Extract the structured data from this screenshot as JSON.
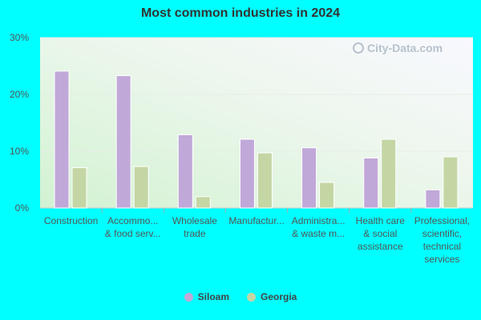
{
  "chart_data": {
    "type": "bar",
    "title": "Most common industries in 2024",
    "categories": [
      [
        "Construction"
      ],
      [
        "Accommo...",
        "& food serv..."
      ],
      [
        "Wholesale",
        "trade"
      ],
      [
        "Manufactur..."
      ],
      [
        "Administra...",
        "& waste m..."
      ],
      [
        "Health care",
        "& social",
        "assistance"
      ],
      [
        "Professional,",
        "scientific,",
        "technical",
        "services"
      ]
    ],
    "series": [
      {
        "name": "Siloam",
        "color": "#c0a8d8",
        "values": [
          24.1,
          23.3,
          12.9,
          12.1,
          10.6,
          8.8,
          3.2
        ]
      },
      {
        "name": "Georgia",
        "color": "#c4d6a4",
        "values": [
          7.1,
          7.3,
          2.0,
          9.7,
          4.5,
          12.1,
          9.0
        ]
      }
    ],
    "ylim": [
      0,
      30
    ],
    "yticks": [
      "0%",
      "10%",
      "20%",
      "30%"
    ],
    "ytick_values": [
      0,
      10,
      20,
      30
    ],
    "legend_position": "bottom",
    "grid": true
  },
  "watermark": "City-Data.com"
}
